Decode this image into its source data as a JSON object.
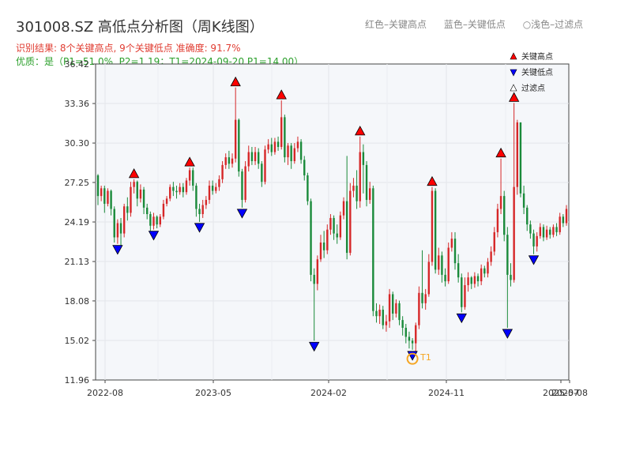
{
  "header": {
    "title": "301008.SZ 高低点分析图（周K线图）",
    "result_line": "识别结果: 8个关键高点, 9个关键低点  准确度: 91.7%",
    "quality_line": "优质：是（P1=51.0%, P2=1.19；T1=2024-09-20 P1=14.00）"
  },
  "top_legend": {
    "red": "红色–关键高点",
    "blue": "蓝色–关键低点",
    "light": "○浅色–过滤点"
  },
  "colors": {
    "up": "#d62728",
    "down": "#1a8a3a",
    "high_marker": "#ff0000",
    "low_marker": "#0000ff",
    "t1": "#f5a623",
    "plot_bg": "#f5f7fa"
  },
  "chart_data": {
    "type": "candlestick",
    "ylim": [
      11.96,
      36.42
    ],
    "yticks": [
      "36.42",
      "33.36",
      "30.30",
      "27.25",
      "24.19",
      "21.13",
      "18.08",
      "15.02",
      "11.96"
    ],
    "xticks": [
      "2022-08",
      "2023-05",
      "2024-02",
      "2024-11",
      "2025-07",
      "2025-08"
    ],
    "legend": [
      {
        "label": "关键高点",
        "marker": "high"
      },
      {
        "label": "关键低点",
        "marker": "low"
      },
      {
        "label": "过滤点",
        "marker": "filtered"
      }
    ],
    "candles": [
      [
        0,
        27.8,
        26.2,
        27.9,
        25.5
      ],
      [
        1,
        26.2,
        26.8,
        27.0,
        25.8
      ],
      [
        2,
        26.8,
        25.6,
        27.0,
        24.9
      ],
      [
        3,
        25.6,
        26.6,
        26.8,
        25.4
      ],
      [
        4,
        26.6,
        25.2,
        26.7,
        24.7
      ],
      [
        5,
        25.2,
        23.0,
        25.4,
        22.6
      ],
      [
        6,
        23.0,
        24.1,
        24.4,
        22.5
      ],
      [
        7,
        24.1,
        23.3,
        24.5,
        22.2
      ],
      [
        8,
        23.3,
        25.4,
        25.6,
        23.0
      ],
      [
        9,
        25.4,
        24.9,
        26.1,
        24.3
      ],
      [
        10,
        24.9,
        26.9,
        27.3,
        24.6
      ],
      [
        11,
        26.9,
        27.3,
        27.5,
        26.4
      ],
      [
        12,
        27.3,
        26.0,
        27.4,
        25.4
      ],
      [
        13,
        26.0,
        26.7,
        27.1,
        25.7
      ],
      [
        14,
        26.7,
        25.3,
        26.9,
        24.8
      ],
      [
        15,
        25.3,
        24.8,
        25.6,
        24.4
      ],
      [
        16,
        24.8,
        23.9,
        25.0,
        23.5
      ],
      [
        17,
        23.9,
        24.6,
        24.9,
        23.6
      ],
      [
        18,
        24.6,
        24.0,
        24.7,
        23.7
      ],
      [
        19,
        24.0,
        24.6,
        24.8,
        23.8
      ],
      [
        20,
        24.6,
        25.6,
        25.9,
        24.4
      ],
      [
        21,
        25.6,
        26.0,
        26.2,
        25.4
      ],
      [
        22,
        26.0,
        26.9,
        27.1,
        25.8
      ],
      [
        23,
        26.9,
        26.6,
        27.3,
        26.2
      ],
      [
        24,
        26.6,
        26.5,
        27.0,
        26.0
      ],
      [
        25,
        26.5,
        26.9,
        27.2,
        26.3
      ],
      [
        26,
        26.9,
        26.5,
        27.2,
        26.1
      ],
      [
        27,
        26.5,
        27.4,
        27.6,
        26.3
      ],
      [
        28,
        27.4,
        28.2,
        28.4,
        27.0
      ],
      [
        29,
        28.2,
        27.0,
        28.4,
        26.6
      ],
      [
        30,
        27.0,
        25.2,
        27.2,
        24.6
      ],
      [
        31,
        25.2,
        24.8,
        25.6,
        24.2
      ],
      [
        32,
        24.8,
        25.5,
        25.9,
        24.5
      ],
      [
        33,
        25.5,
        25.9,
        26.2,
        25.2
      ],
      [
        34,
        25.9,
        27.0,
        27.4,
        25.6
      ],
      [
        35,
        27.0,
        26.6,
        27.4,
        26.3
      ],
      [
        36,
        26.6,
        26.9,
        27.2,
        26.4
      ],
      [
        37,
        26.9,
        27.5,
        27.8,
        26.6
      ],
      [
        38,
        27.5,
        28.6,
        28.9,
        27.2
      ],
      [
        39,
        28.6,
        29.2,
        29.5,
        28.3
      ],
      [
        40,
        29.2,
        28.7,
        29.7,
        28.3
      ],
      [
        41,
        28.7,
        29.1,
        29.5,
        28.4
      ],
      [
        42,
        29.1,
        32.1,
        34.6,
        28.8
      ],
      [
        43,
        32.1,
        28.1,
        32.2,
        27.7
      ],
      [
        44,
        28.1,
        25.9,
        28.3,
        25.3
      ],
      [
        45,
        25.9,
        28.5,
        28.9,
        25.7
      ],
      [
        46,
        28.5,
        29.6,
        30.1,
        28.1
      ],
      [
        47,
        29.6,
        28.9,
        30.0,
        28.6
      ],
      [
        48,
        28.9,
        29.6,
        30.0,
        28.6
      ],
      [
        49,
        29.6,
        28.7,
        29.9,
        28.3
      ],
      [
        50,
        28.7,
        27.3,
        28.9,
        26.9
      ],
      [
        51,
        27.3,
        29.8,
        30.1,
        27.1
      ],
      [
        52,
        29.8,
        30.2,
        30.6,
        29.5
      ],
      [
        53,
        30.2,
        29.6,
        30.7,
        29.3
      ],
      [
        54,
        29.6,
        30.4,
        30.7,
        29.4
      ],
      [
        55,
        30.4,
        30.0,
        30.8,
        29.7
      ],
      [
        56,
        30.0,
        32.3,
        33.6,
        29.8
      ],
      [
        57,
        32.3,
        29.2,
        32.5,
        28.8
      ],
      [
        58,
        29.2,
        30.1,
        30.3,
        28.6
      ],
      [
        59,
        30.1,
        28.9,
        30.3,
        28.3
      ],
      [
        60,
        28.9,
        29.9,
        30.3,
        28.7
      ],
      [
        61,
        29.9,
        30.4,
        30.8,
        29.6
      ],
      [
        62,
        30.4,
        29.0,
        30.6,
        28.7
      ],
      [
        63,
        29.0,
        27.8,
        29.3,
        27.4
      ],
      [
        64,
        27.8,
        25.8,
        28.0,
        25.5
      ],
      [
        65,
        25.8,
        20.1,
        26.0,
        19.6
      ],
      [
        66,
        20.1,
        19.4,
        20.6,
        15.0
      ],
      [
        67,
        19.4,
        21.3,
        21.6,
        18.9
      ],
      [
        68,
        21.3,
        22.6,
        23.2,
        21.1
      ],
      [
        69,
        22.6,
        22.0,
        23.5,
        21.4
      ],
      [
        70,
        22.0,
        23.6,
        24.0,
        21.7
      ],
      [
        71,
        23.6,
        24.5,
        24.8,
        23.2
      ],
      [
        72,
        24.5,
        23.3,
        24.7,
        22.8
      ],
      [
        73,
        23.3,
        23.0,
        24.0,
        22.5
      ],
      [
        74,
        23.0,
        24.7,
        25.0,
        22.8
      ],
      [
        75,
        24.7,
        25.8,
        26.1,
        24.4
      ],
      [
        76,
        25.8,
        21.8,
        29.3,
        21.3
      ],
      [
        77,
        21.8,
        26.6,
        27.2,
        21.6
      ],
      [
        78,
        26.6,
        27.0,
        27.6,
        26.1
      ],
      [
        79,
        27.0,
        25.8,
        28.2,
        25.2
      ],
      [
        80,
        25.8,
        29.6,
        30.8,
        25.3
      ],
      [
        81,
        29.6,
        28.6,
        30.2,
        26.4
      ],
      [
        82,
        28.6,
        25.9,
        28.9,
        25.4
      ],
      [
        83,
        25.9,
        26.8,
        27.3,
        25.6
      ],
      [
        84,
        26.8,
        17.3,
        27.0,
        16.9
      ],
      [
        85,
        17.3,
        16.9,
        17.9,
        16.4
      ],
      [
        86,
        16.9,
        17.4,
        17.8,
        16.3
      ],
      [
        87,
        17.4,
        16.2,
        17.7,
        15.9
      ],
      [
        88,
        16.2,
        16.5,
        17.0,
        15.7
      ],
      [
        89,
        16.5,
        18.6,
        19.0,
        16.0
      ],
      [
        90,
        18.6,
        17.1,
        18.8,
        16.6
      ],
      [
        91,
        17.1,
        17.9,
        18.2,
        16.8
      ],
      [
        92,
        17.9,
        16.6,
        18.1,
        16.2
      ],
      [
        93,
        16.6,
        16.0,
        16.9,
        15.4
      ],
      [
        94,
        16.0,
        15.3,
        16.3,
        14.8
      ],
      [
        95,
        15.3,
        15.0,
        15.7,
        14.4
      ],
      [
        96,
        15.0,
        14.8,
        15.2,
        14.3
      ],
      [
        97,
        14.8,
        16.2,
        16.4,
        14.1
      ],
      [
        98,
        16.2,
        18.7,
        19.2,
        15.9
      ],
      [
        99,
        18.7,
        17.9,
        22.0,
        17.5
      ],
      [
        100,
        17.9,
        18.6,
        19.0,
        17.4
      ],
      [
        101,
        18.6,
        21.1,
        21.7,
        18.4
      ],
      [
        102,
        21.1,
        26.6,
        26.9,
        20.8
      ],
      [
        103,
        26.6,
        20.5,
        26.8,
        20.2
      ],
      [
        104,
        20.5,
        21.6,
        22.2,
        20.1
      ],
      [
        105,
        21.6,
        20.1,
        21.9,
        19.5
      ],
      [
        106,
        20.1,
        19.6,
        20.6,
        19.2
      ],
      [
        107,
        19.6,
        22.2,
        22.6,
        19.4
      ],
      [
        108,
        22.2,
        22.9,
        23.4,
        21.9
      ],
      [
        109,
        22.9,
        21.0,
        23.4,
        20.5
      ],
      [
        110,
        21.0,
        19.9,
        21.7,
        19.5
      ],
      [
        111,
        19.9,
        17.6,
        20.2,
        17.2
      ],
      [
        112,
        17.6,
        19.3,
        19.9,
        17.4
      ],
      [
        113,
        19.3,
        19.9,
        20.3,
        18.8
      ],
      [
        114,
        19.9,
        19.4,
        20.0,
        19.0
      ],
      [
        115,
        19.4,
        20.0,
        20.3,
        19.1
      ],
      [
        116,
        20.0,
        19.6,
        20.2,
        19.2
      ],
      [
        117,
        19.6,
        20.6,
        20.9,
        19.3
      ],
      [
        118,
        20.6,
        20.2,
        20.8,
        19.9
      ],
      [
        119,
        20.2,
        21.1,
        21.4,
        19.9
      ],
      [
        120,
        21.1,
        21.9,
        22.3,
        20.8
      ],
      [
        121,
        21.9,
        23.4,
        23.8,
        21.6
      ],
      [
        122,
        23.4,
        25.2,
        25.6,
        23.0
      ],
      [
        123,
        25.2,
        26.2,
        29.1,
        24.8
      ],
      [
        124,
        26.2,
        23.2,
        26.6,
        22.7
      ],
      [
        125,
        23.2,
        20.1,
        23.8,
        16.0
      ],
      [
        126,
        20.1,
        19.7,
        21.0,
        19.2
      ],
      [
        127,
        19.7,
        26.9,
        33.4,
        19.5
      ],
      [
        128,
        26.9,
        31.9,
        32.1,
        26.3
      ],
      [
        129,
        31.9,
        26.4,
        31.9,
        26.1
      ],
      [
        130,
        26.4,
        25.3,
        27.0,
        24.8
      ],
      [
        131,
        25.3,
        24.0,
        25.5,
        23.5
      ],
      [
        132,
        24.0,
        23.3,
        24.3,
        22.9
      ],
      [
        133,
        23.3,
        22.3,
        23.6,
        21.7
      ],
      [
        134,
        22.3,
        23.1,
        23.4,
        21.9
      ],
      [
        135,
        23.1,
        23.8,
        24.1,
        22.9
      ],
      [
        136,
        23.8,
        23.0,
        24.0,
        22.7
      ],
      [
        137,
        23.0,
        23.6,
        23.9,
        22.8
      ],
      [
        138,
        23.6,
        23.2,
        23.8,
        22.9
      ],
      [
        139,
        23.2,
        23.8,
        24.0,
        23.0
      ],
      [
        140,
        23.8,
        23.4,
        24.1,
        23.1
      ],
      [
        141,
        23.4,
        24.6,
        24.9,
        23.2
      ],
      [
        142,
        24.6,
        24.1,
        24.8,
        23.8
      ],
      [
        143,
        24.1,
        25.2,
        25.5,
        23.9
      ]
    ],
    "key_highs": [
      {
        "i": 11,
        "price": 27.5
      },
      {
        "i": 28,
        "price": 28.4
      },
      {
        "i": 42,
        "price": 34.6
      },
      {
        "i": 56,
        "price": 33.6
      },
      {
        "i": 80,
        "price": 30.8
      },
      {
        "i": 102,
        "price": 26.9
      },
      {
        "i": 123,
        "price": 29.1
      },
      {
        "i": 127,
        "price": 33.4
      }
    ],
    "key_lows": [
      {
        "i": 6,
        "price": 22.5
      },
      {
        "i": 17,
        "price": 23.6
      },
      {
        "i": 31,
        "price": 24.2
      },
      {
        "i": 44,
        "price": 25.3
      },
      {
        "i": 66,
        "price": 15.0
      },
      {
        "i": 96,
        "price": 14.3
      },
      {
        "i": 111,
        "price": 17.2
      },
      {
        "i": 125,
        "price": 16.0
      },
      {
        "i": 133,
        "price": 21.7
      }
    ],
    "t1": {
      "i": 96,
      "price": 13.6,
      "label": "T1"
    }
  }
}
